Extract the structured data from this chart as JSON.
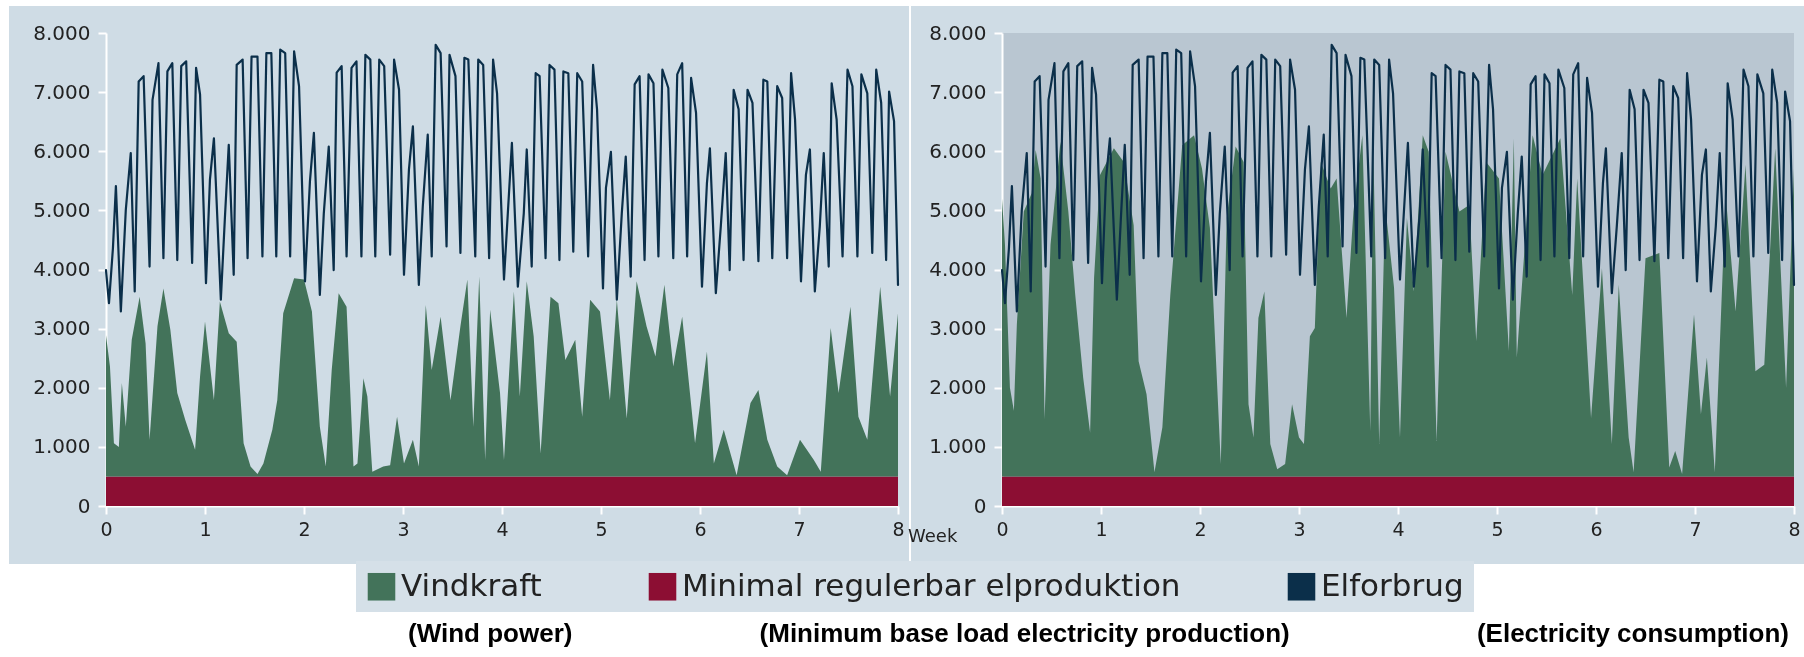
{
  "chart_data": [
    {
      "type": "area",
      "stacked": true,
      "xlabel": "Week",
      "legend": "bottom",
      "xlim": [
        0,
        8
      ],
      "xticks": [
        0,
        1,
        2,
        3,
        4,
        5,
        6,
        7,
        8
      ],
      "ylim": [
        0,
        8000
      ],
      "yticks": [
        {
          "value": 0,
          "label": "0"
        },
        {
          "value": 1000,
          "label": "1.000"
        },
        {
          "value": 2000,
          "label": "2.000"
        },
        {
          "value": 3000,
          "label": "3.000"
        },
        {
          "value": 4000,
          "label": "4.000"
        },
        {
          "value": 5000,
          "label": "5.000"
        },
        {
          "value": 6000,
          "label": "6.000"
        },
        {
          "value": 7000,
          "label": "7.000"
        },
        {
          "value": 8000,
          "label": "8.000"
        }
      ],
      "annotations": [
        "(Wind power)",
        "(Minimum base load electricity production)",
        "(Electricity consumption)"
      ],
      "x": [
        0,
        0.04,
        0.08,
        0.13,
        0.16,
        0.2,
        0.26,
        0.34,
        0.4,
        0.44,
        0.52,
        0.58,
        0.65,
        0.72,
        0.8,
        0.9,
        0.95,
        1,
        1.09,
        1.15,
        1.24,
        1.32,
        1.39,
        1.46,
        1.53,
        1.59,
        1.68,
        1.73,
        1.79,
        1.9,
        2,
        2.08,
        2.16,
        2.22,
        2.28,
        2.35,
        2.43,
        2.5,
        2.54,
        2.6,
        2.64,
        2.69,
        2.8,
        2.87,
        2.94,
        3.01,
        3.1,
        3.16,
        3.23,
        3.29,
        3.38,
        3.48,
        3.58,
        3.65,
        3.71,
        3.77,
        3.83,
        3.88,
        3.98,
        4.02,
        4.12,
        4.18,
        4.25,
        4.32,
        4.39,
        4.49,
        4.57,
        4.64,
        4.74,
        4.81,
        4.89,
        4.99,
        5.09,
        5.16,
        5.26,
        5.36,
        5.46,
        5.55,
        5.64,
        5.73,
        5.82,
        5.95,
        6.07,
        6.14,
        6.24,
        6.37,
        6.51,
        6.59,
        6.68,
        6.78,
        6.88,
        7.01,
        7.15,
        7.22,
        7.32,
        7.4,
        7.52,
        7.6,
        7.69,
        7.82,
        7.92,
        8
      ],
      "series": [
        {
          "name": "Minimal regulerbar elproduktion",
          "color": "#8c0e33",
          "values": [
            500,
            500,
            500,
            500,
            500,
            500,
            500,
            500,
            500,
            500,
            500,
            500,
            500,
            500,
            500,
            500,
            500,
            500,
            500,
            500,
            500,
            500,
            500,
            500,
            500,
            500,
            500,
            500,
            500,
            500,
            500,
            500,
            500,
            500,
            500,
            500,
            500,
            500,
            500,
            500,
            500,
            500,
            500,
            500,
            500,
            500,
            500,
            500,
            500,
            500,
            500,
            500,
            500,
            500,
            500,
            500,
            500,
            500,
            500,
            500,
            500,
            500,
            500,
            500,
            500,
            500,
            500,
            500,
            500,
            500,
            500,
            500,
            500,
            500,
            500,
            500,
            500,
            500,
            500,
            500,
            500,
            500,
            500,
            500,
            500,
            500,
            500,
            500,
            500,
            500,
            500,
            500,
            500,
            500,
            500,
            500,
            500,
            500,
            500,
            500,
            500,
            500
          ]
        },
        {
          "name": "Vindkraft",
          "color": "#43735a",
          "values": [
            2390,
            1860,
            560,
            500,
            1580,
            840,
            2310,
            3040,
            2250,
            620,
            2540,
            3180,
            2480,
            1410,
            960,
            450,
            1690,
            2620,
            1290,
            2960,
            2420,
            2280,
            560,
            170,
            40,
            220,
            790,
            1290,
            2760,
            3350,
            3330,
            2790,
            840,
            170,
            1800,
            3100,
            2870,
            170,
            220,
            1660,
            1350,
            80,
            170,
            190,
            1010,
            220,
            620,
            170,
            2900,
            1800,
            2700,
            1290,
            2540,
            3330,
            840,
            3380,
            280,
            2820,
            1410,
            280,
            3130,
            1350,
            3300,
            2370,
            390,
            3040,
            2930,
            1970,
            2310,
            1010,
            2990,
            2790,
            1290,
            2990,
            980,
            3300,
            2540,
            2030,
            3240,
            1860,
            2700,
            560,
            2110,
            220,
            790,
            20,
            1240,
            1460,
            620,
            170,
            20,
            620,
            280,
            80,
            2510,
            1410,
            2870,
            1010,
            620,
            3210,
            1350,
            2760
          ]
        },
        {
          "name": "Elforbrug",
          "type": "line",
          "color": "#0b2f4a",
          "x": [
            0,
            0.03,
            0.07,
            0.1,
            0.15,
            0.2,
            0.25,
            0.29,
            0.33,
            0.38,
            0.44,
            0.47,
            0.53,
            0.58,
            0.62,
            0.67,
            0.72,
            0.76,
            0.81,
            0.87,
            0.91,
            0.95,
            1.01,
            1.05,
            1.09,
            1.16,
            1.2,
            1.24,
            1.29,
            1.32,
            1.38,
            1.43,
            1.47,
            1.53,
            1.58,
            1.62,
            1.67,
            1.72,
            1.76,
            1.81,
            1.86,
            1.9,
            1.95,
            2.01,
            2.06,
            2.1,
            2.16,
            2.2,
            2.25,
            2.3,
            2.33,
            2.38,
            2.43,
            2.48,
            2.53,
            2.58,
            2.62,
            2.67,
            2.72,
            2.76,
            2.81,
            2.87,
            2.91,
            2.96,
            3.01,
            3.06,
            3.1,
            3.16,
            3.2,
            3.25,
            3.29,
            3.33,
            3.38,
            3.44,
            3.47,
            3.53,
            3.58,
            3.62,
            3.66,
            3.73,
            3.76,
            3.81,
            3.87,
            3.91,
            3.95,
            4.02,
            4.1,
            4.16,
            4.22,
            4.25,
            4.3,
            4.34,
            4.38,
            4.44,
            4.48,
            4.53,
            4.58,
            4.62,
            4.67,
            4.72,
            4.76,
            4.81,
            4.87,
            4.92,
            4.96,
            5.02,
            5.05,
            5.1,
            5.16,
            5.21,
            5.25,
            5.3,
            5.34,
            5.39,
            5.44,
            5.48,
            5.53,
            5.58,
            5.62,
            5.68,
            5.73,
            5.77,
            5.82,
            5.87,
            5.91,
            5.96,
            6.02,
            6.07,
            6.1,
            6.16,
            6.21,
            6.26,
            6.3,
            6.34,
            6.39,
            6.44,
            6.48,
            6.53,
            6.59,
            6.64,
            6.68,
            6.73,
            6.78,
            6.83,
            6.88,
            6.92,
            6.96,
            7.02,
            7.07,
            7.11,
            7.16,
            7.21,
            7.25,
            7.3,
            7.33,
            7.38,
            7.44,
            7.49,
            7.54,
            7.59,
            7.63,
            7.69,
            7.74,
            7.78,
            7.83,
            7.88,
            7.91,
            7.96,
            8
          ],
          "values": [
            3990,
            3430,
            4360,
            5410,
            3290,
            5010,
            5970,
            3630,
            7180,
            7270,
            4050,
            6870,
            7490,
            4190,
            7350,
            7490,
            4160,
            7440,
            7520,
            4110,
            7410,
            6960,
            3770,
            5520,
            6220,
            3490,
            4840,
            6110,
            3910,
            7460,
            7550,
            4190,
            7600,
            7600,
            4220,
            7660,
            7660,
            4220,
            7720,
            7660,
            4220,
            7690,
            7100,
            3800,
            5490,
            6310,
            3570,
            4950,
            6080,
            3990,
            7330,
            7440,
            4220,
            7410,
            7520,
            4220,
            7630,
            7550,
            4220,
            7550,
            7440,
            4250,
            7550,
            7040,
            3910,
            5690,
            6420,
            3740,
            5070,
            6280,
            4220,
            7800,
            7660,
            4390,
            7630,
            7270,
            4280,
            7580,
            7550,
            4220,
            7550,
            7460,
            4190,
            7550,
            6980,
            3830,
            6140,
            3710,
            4950,
            6030,
            4050,
            7320,
            7270,
            4190,
            7460,
            7380,
            4160,
            7350,
            7320,
            4300,
            7320,
            7180,
            4220,
            7460,
            6710,
            3680,
            5380,
            5990,
            3490,
            4950,
            5910,
            3880,
            7130,
            7270,
            4160,
            7300,
            7150,
            4220,
            7380,
            7070,
            4190,
            7300,
            7490,
            4220,
            7240,
            6650,
            3710,
            5460,
            6050,
            3600,
            4730,
            5970,
            3990,
            7040,
            6710,
            4160,
            7040,
            6820,
            4140,
            7210,
            7180,
            4190,
            7100,
            6900,
            4190,
            7320,
            6540,
            3800,
            5600,
            6030,
            3630,
            4730,
            5970,
            4050,
            7150,
            6540,
            4220,
            7380,
            7100,
            4220,
            7300,
            6980,
            4280,
            7380,
            6820,
            4160,
            7010,
            6510,
            3740
          ]
        }
      ]
    },
    {
      "type": "area",
      "stacked": true,
      "xlim": [
        0,
        8
      ],
      "xticks": [
        0,
        1,
        2,
        3,
        4,
        5,
        6,
        7,
        8
      ],
      "ylim": [
        0,
        8000
      ],
      "yticks": [
        {
          "value": 0,
          "label": "0"
        },
        {
          "value": 1000,
          "label": "1.000"
        },
        {
          "value": 2000,
          "label": "2.000"
        },
        {
          "value": 3000,
          "label": "3.000"
        },
        {
          "value": 4000,
          "label": "4.000"
        },
        {
          "value": 5000,
          "label": "5.000"
        },
        {
          "value": 6000,
          "label": "6.000"
        },
        {
          "value": 7000,
          "label": "7.000"
        },
        {
          "value": 8000,
          "label": "8.000"
        }
      ],
      "x": [
        0,
        0.03,
        0.08,
        0.12,
        0.15,
        0.22,
        0.3,
        0.34,
        0.39,
        0.43,
        0.49,
        0.59,
        0.67,
        0.74,
        0.82,
        0.89,
        0.93,
        0.99,
        1.13,
        1.23,
        1.33,
        1.38,
        1.46,
        1.54,
        1.62,
        1.7,
        1.82,
        1.94,
        2.02,
        2.1,
        2.21,
        2.27,
        2.36,
        2.44,
        2.49,
        2.54,
        2.59,
        2.65,
        2.71,
        2.78,
        2.86,
        2.93,
        3,
        3.05,
        3.11,
        3.16,
        3.22,
        3.32,
        3.38,
        3.48,
        3.55,
        3.64,
        3.72,
        3.75,
        3.81,
        3.87,
        3.96,
        4.02,
        4.09,
        4.16,
        4.25,
        4.31,
        4.39,
        4.48,
        4.62,
        4.72,
        4.79,
        4.89,
        5.02,
        5.12,
        5.17,
        5.2,
        5.36,
        5.46,
        5.64,
        5.76,
        5.81,
        5.95,
        6.06,
        6.16,
        6.23,
        6.33,
        6.38,
        6.5,
        6.64,
        6.74,
        6.8,
        6.87,
        6.99,
        7.06,
        7.12,
        7.2,
        7.31,
        7.41,
        7.51,
        7.61,
        7.7,
        7.81,
        7.92,
        8
      ],
      "series": [
        {
          "color": "#8c0e33",
          "values": [
            500,
            500,
            500,
            500,
            500,
            500,
            500,
            500,
            500,
            500,
            500,
            500,
            500,
            500,
            500,
            500,
            500,
            500,
            500,
            500,
            500,
            500,
            500,
            500,
            500,
            500,
            500,
            500,
            500,
            500,
            500,
            500,
            500,
            500,
            500,
            500,
            500,
            500,
            500,
            500,
            500,
            500,
            500,
            500,
            500,
            500,
            500,
            500,
            500,
            500,
            500,
            500,
            500,
            500,
            500,
            500,
            500,
            500,
            500,
            500,
            500,
            500,
            500,
            500,
            500,
            500,
            500,
            500,
            500,
            500,
            500,
            500,
            500,
            500,
            500,
            500,
            500,
            500,
            500,
            500,
            500,
            500,
            500,
            500,
            500,
            500,
            500,
            500,
            500,
            500,
            500,
            500,
            500,
            500,
            500,
            500,
            500,
            500,
            500,
            500
          ]
        },
        {
          "color": "#43735a",
          "values": [
            4700,
            3920,
            1500,
            1110,
            2570,
            4480,
            4790,
            5520,
            5040,
            970,
            3920,
            5660,
            4480,
            3070,
            1670,
            740,
            3360,
            5100,
            5550,
            5320,
            4250,
            1950,
            1390,
            70,
            830,
            3070,
            5600,
            5770,
            5210,
            4200,
            210,
            4370,
            5580,
            5320,
            1220,
            660,
            2680,
            3130,
            550,
            120,
            210,
            1220,
            660,
            550,
            2370,
            2510,
            5320,
            4870,
            5040,
            2680,
            4480,
            5770,
            770,
            5600,
            550,
            4590,
            3190,
            660,
            4370,
            3130,
            5770,
            5490,
            600,
            5490,
            4480,
            4590,
            2290,
            5320,
            5040,
            2120,
            5720,
            2010,
            5770,
            5100,
            5720,
            3070,
            5040,
            990,
            3520,
            550,
            3240,
            660,
            70,
            3690,
            3780,
            150,
            430,
            40,
            2740,
            1050,
            2010,
            70,
            4760,
            2790,
            5270,
            1780,
            1890,
            5550,
            1500,
            5210
          ]
        },
        {
          "type": "line",
          "color": "#0b2f4a",
          "x": [
            0,
            0.03,
            0.07,
            0.1,
            0.15,
            0.2,
            0.25,
            0.29,
            0.33,
            0.38,
            0.44,
            0.47,
            0.53,
            0.58,
            0.62,
            0.67,
            0.72,
            0.76,
            0.81,
            0.87,
            0.91,
            0.95,
            1.01,
            1.05,
            1.09,
            1.16,
            1.2,
            1.24,
            1.29,
            1.32,
            1.38,
            1.43,
            1.47,
            1.53,
            1.58,
            1.62,
            1.67,
            1.72,
            1.76,
            1.81,
            1.86,
            1.9,
            1.95,
            2.01,
            2.06,
            2.1,
            2.16,
            2.2,
            2.25,
            2.3,
            2.33,
            2.38,
            2.43,
            2.48,
            2.53,
            2.58,
            2.62,
            2.67,
            2.72,
            2.76,
            2.81,
            2.87,
            2.91,
            2.96,
            3.01,
            3.06,
            3.1,
            3.16,
            3.2,
            3.25,
            3.29,
            3.33,
            3.38,
            3.44,
            3.47,
            3.53,
            3.58,
            3.62,
            3.66,
            3.73,
            3.76,
            3.81,
            3.87,
            3.91,
            3.95,
            4.02,
            4.1,
            4.16,
            4.22,
            4.25,
            4.3,
            4.34,
            4.38,
            4.44,
            4.48,
            4.53,
            4.58,
            4.62,
            4.67,
            4.72,
            4.76,
            4.81,
            4.87,
            4.92,
            4.96,
            5.02,
            5.05,
            5.1,
            5.16,
            5.21,
            5.25,
            5.3,
            5.34,
            5.39,
            5.44,
            5.48,
            5.53,
            5.58,
            5.62,
            5.68,
            5.73,
            5.77,
            5.82,
            5.87,
            5.91,
            5.96,
            6.02,
            6.07,
            6.1,
            6.16,
            6.21,
            6.26,
            6.3,
            6.34,
            6.39,
            6.44,
            6.48,
            6.53,
            6.59,
            6.64,
            6.68,
            6.73,
            6.78,
            6.83,
            6.88,
            6.92,
            6.96,
            7.02,
            7.07,
            7.11,
            7.16,
            7.21,
            7.25,
            7.3,
            7.33,
            7.38,
            7.44,
            7.49,
            7.54,
            7.59,
            7.63,
            7.69,
            7.74,
            7.78,
            7.83,
            7.88,
            7.91,
            7.96,
            8
          ],
          "values": [
            3990,
            3430,
            4360,
            5410,
            3290,
            5010,
            5970,
            3630,
            7180,
            7270,
            4050,
            6870,
            7490,
            4190,
            7350,
            7490,
            4160,
            7440,
            7520,
            4110,
            7410,
            6960,
            3770,
            5520,
            6220,
            3490,
            4840,
            6110,
            3910,
            7460,
            7550,
            4190,
            7600,
            7600,
            4220,
            7660,
            7660,
            4220,
            7720,
            7660,
            4220,
            7690,
            7100,
            3800,
            5490,
            6310,
            3570,
            4950,
            6080,
            3990,
            7330,
            7440,
            4220,
            7410,
            7520,
            4220,
            7630,
            7550,
            4220,
            7550,
            7440,
            4250,
            7550,
            7040,
            3910,
            5690,
            6420,
            3740,
            5070,
            6280,
            4220,
            7800,
            7660,
            4390,
            7630,
            7270,
            4280,
            7580,
            7550,
            4220,
            7550,
            7460,
            4190,
            7550,
            6980,
            3830,
            6140,
            3710,
            4950,
            6030,
            4050,
            7320,
            7270,
            4190,
            7460,
            7380,
            4160,
            7350,
            7320,
            4300,
            7320,
            7180,
            4220,
            7460,
            6710,
            3680,
            5380,
            5990,
            3490,
            4950,
            5910,
            3880,
            7130,
            7270,
            4160,
            7300,
            7150,
            4220,
            7380,
            7070,
            4190,
            7300,
            7490,
            4220,
            7240,
            6650,
            3710,
            5460,
            6050,
            3600,
            4730,
            5970,
            3990,
            7040,
            6710,
            4160,
            7040,
            6820,
            4140,
            7210,
            7180,
            4190,
            7100,
            6900,
            4190,
            7320,
            6540,
            3800,
            5600,
            6030,
            3630,
            4730,
            5970,
            4050,
            7150,
            6540,
            4220,
            7380,
            7100,
            4220,
            7300,
            6980,
            4280,
            7380,
            6820,
            4160,
            7010,
            6510,
            3740
          ]
        }
      ]
    }
  ]
}
